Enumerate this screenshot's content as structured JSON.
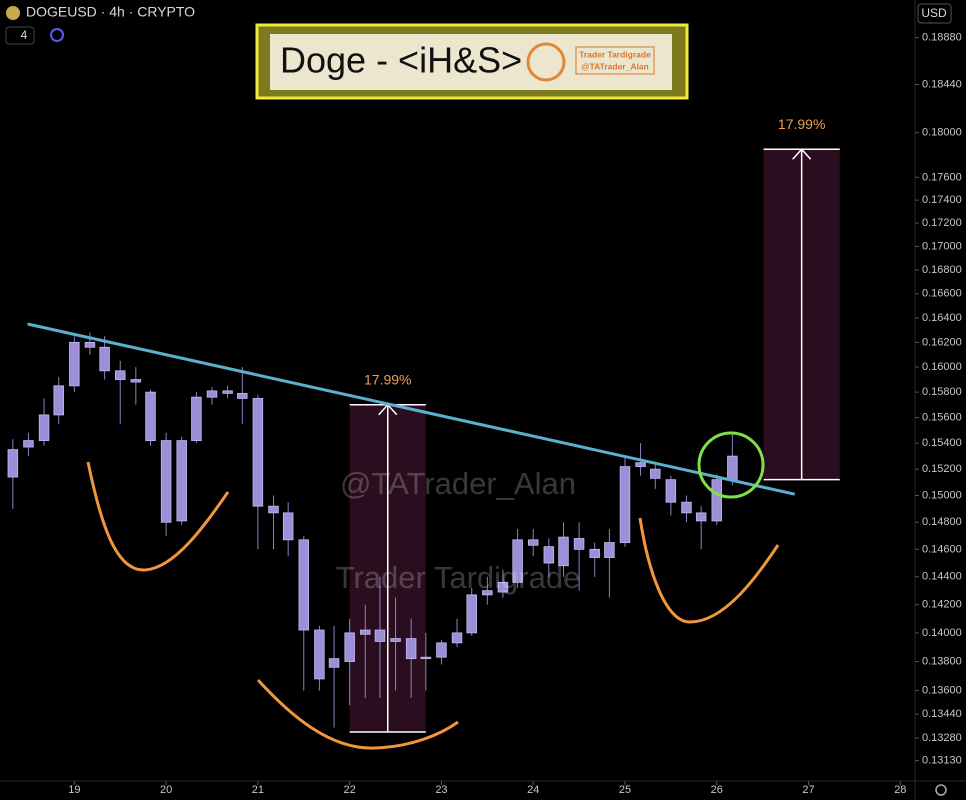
{
  "header": {
    "symbol": "DOGEUSD · 4h · CRYPTO",
    "multiplier": "4",
    "currency": "USD"
  },
  "chart_data": {
    "type": "candlestick",
    "title": "Doge - <iH&S>",
    "logo_text": [
      "Trader Tardigrade",
      "@TATrader_Alan"
    ],
    "watermarks": [
      "@TATrader_Alan",
      "Trader Tardigrade"
    ],
    "color": "#9c8fd8",
    "log_scale": true,
    "x": [
      18.33,
      18.5,
      18.67,
      18.83,
      19,
      19.17,
      19.33,
      19.5,
      19.67,
      19.83,
      20,
      20.17,
      20.33,
      20.5,
      20.67,
      20.83,
      21,
      21.17,
      21.33,
      21.5,
      21.67,
      21.83,
      22,
      22.17,
      22.33,
      22.5,
      22.67,
      22.83,
      23,
      23.17,
      23.33,
      23.5,
      23.67,
      23.83,
      24,
      24.17,
      24.33,
      24.5,
      24.67,
      24.83,
      25,
      25.17,
      25.33,
      25.5,
      25.67,
      25.83,
      26,
      26.17
    ],
    "open": [
      0.1514,
      0.1537,
      0.1542,
      0.1562,
      0.1585,
      0.162,
      0.1616,
      0.1597,
      0.159,
      0.158,
      0.1542,
      0.1481,
      0.1542,
      0.1576,
      0.1581,
      0.1579,
      0.1575,
      0.1492,
      0.1487,
      0.1467,
      0.1402,
      0.1382,
      0.138,
      0.1399,
      0.1402,
      0.1394,
      0.1396,
      0.1382,
      0.1383,
      0.1393,
      0.14,
      0.1427,
      0.1429,
      0.1436,
      0.1467,
      0.1462,
      0.1448,
      0.1468,
      0.146,
      0.1454,
      0.1465,
      0.1522,
      0.152,
      0.1512,
      0.1495,
      0.1487,
      0.1481,
      0.1512
    ],
    "high": [
      0.1543,
      0.1548,
      0.1575,
      0.1592,
      0.1625,
      0.1628,
      0.1625,
      0.1605,
      0.16,
      0.1582,
      0.1548,
      0.1545,
      0.158,
      0.1584,
      0.1585,
      0.16,
      0.1578,
      0.15,
      0.1495,
      0.147,
      0.1405,
      0.1405,
      0.141,
      0.142,
      0.144,
      0.1425,
      0.141,
      0.14,
      0.1395,
      0.141,
      0.1432,
      0.144,
      0.1445,
      0.1475,
      0.1475,
      0.1468,
      0.148,
      0.148,
      0.1465,
      0.1475,
      0.153,
      0.154,
      0.1525,
      0.1515,
      0.15,
      0.1492,
      0.1516,
      0.1548
    ],
    "low": [
      0.149,
      0.153,
      0.1538,
      0.1555,
      0.158,
      0.161,
      0.159,
      0.1555,
      0.157,
      0.1538,
      0.147,
      0.1478,
      0.154,
      0.157,
      0.1575,
      0.1555,
      0.146,
      0.146,
      0.1455,
      0.136,
      0.136,
      0.1335,
      0.135,
      0.1355,
      0.1355,
      0.136,
      0.1355,
      0.136,
      0.1378,
      0.139,
      0.1398,
      0.142,
      0.1425,
      0.1432,
      0.1455,
      0.144,
      0.144,
      0.143,
      0.144,
      0.1425,
      0.1462,
      0.1515,
      0.1505,
      0.1485,
      0.148,
      0.146,
      0.1478,
      0.1508
    ],
    "close": [
      0.1535,
      0.1542,
      0.1562,
      0.1585,
      0.162,
      0.1616,
      0.1597,
      0.159,
      0.1588,
      0.1542,
      0.148,
      0.1542,
      0.1576,
      0.1581,
      0.1579,
      0.1575,
      0.1492,
      0.1487,
      0.1467,
      0.1402,
      0.1368,
      0.1376,
      0.14,
      0.1402,
      0.1394,
      0.1396,
      0.1382,
      0.1383,
      0.1393,
      0.14,
      0.1427,
      0.143,
      0.1436,
      0.1467,
      0.1463,
      0.145,
      0.1469,
      0.146,
      0.1454,
      0.1465,
      0.1522,
      0.1525,
      0.1513,
      0.1495,
      0.1487,
      0.1481,
      0.1512,
      0.153
    ],
    "xlim": [
      18.19,
      28.16
    ],
    "xticks": [
      19,
      20,
      21,
      22,
      23,
      24,
      25,
      26,
      27,
      28
    ],
    "ylim": [
      0.1297,
      0.1924
    ],
    "yticks": [
      {
        "value": 0.1888,
        "label": "0.18880"
      },
      {
        "value": 0.1844,
        "label": "0.18440"
      },
      {
        "value": 0.18,
        "label": "0.18000"
      },
      {
        "value": 0.176,
        "label": "0.17600"
      },
      {
        "value": 0.174,
        "label": "0.17400"
      },
      {
        "value": 0.172,
        "label": "0.17200"
      },
      {
        "value": 0.17,
        "label": "0.17000"
      },
      {
        "value": 0.168,
        "label": "0.16800"
      },
      {
        "value": 0.166,
        "label": "0.16600"
      },
      {
        "value": 0.164,
        "label": "0.16400"
      },
      {
        "value": 0.162,
        "label": "0.16200"
      },
      {
        "value": 0.16,
        "label": "0.16000"
      },
      {
        "value": 0.158,
        "label": "0.15800"
      },
      {
        "value": 0.156,
        "label": "0.15600"
      },
      {
        "value": 0.154,
        "label": "0.15400"
      },
      {
        "value": 0.152,
        "label": "0.15200"
      },
      {
        "value": 0.15,
        "label": "0.15000"
      },
      {
        "value": 0.148,
        "label": "0.14800"
      },
      {
        "value": 0.146,
        "label": "0.14600"
      },
      {
        "value": 0.144,
        "label": "0.14400"
      },
      {
        "value": 0.142,
        "label": "0.14200"
      },
      {
        "value": 0.14,
        "label": "0.14000"
      },
      {
        "value": 0.138,
        "label": "0.13800"
      },
      {
        "value": 0.136,
        "label": "0.13600"
      },
      {
        "value": 0.1344,
        "label": "0.13440"
      },
      {
        "value": 0.1328,
        "label": "0.13280"
      },
      {
        "value": 0.1313,
        "label": "0.13130"
      }
    ],
    "trendline": {
      "x": [
        18.49,
        26.85
      ],
      "y": [
        0.1635,
        0.1501
      ],
      "color": "#5ab0d0"
    },
    "measures": [
      {
        "x": [
          22,
          22.83
        ],
        "y": [
          0.1332,
          0.157
        ],
        "label": "17.99%"
      },
      {
        "x": [
          26.51,
          27.34
        ],
        "y": [
          0.1512,
          0.1785
        ],
        "label": "17.99%"
      }
    ]
  }
}
